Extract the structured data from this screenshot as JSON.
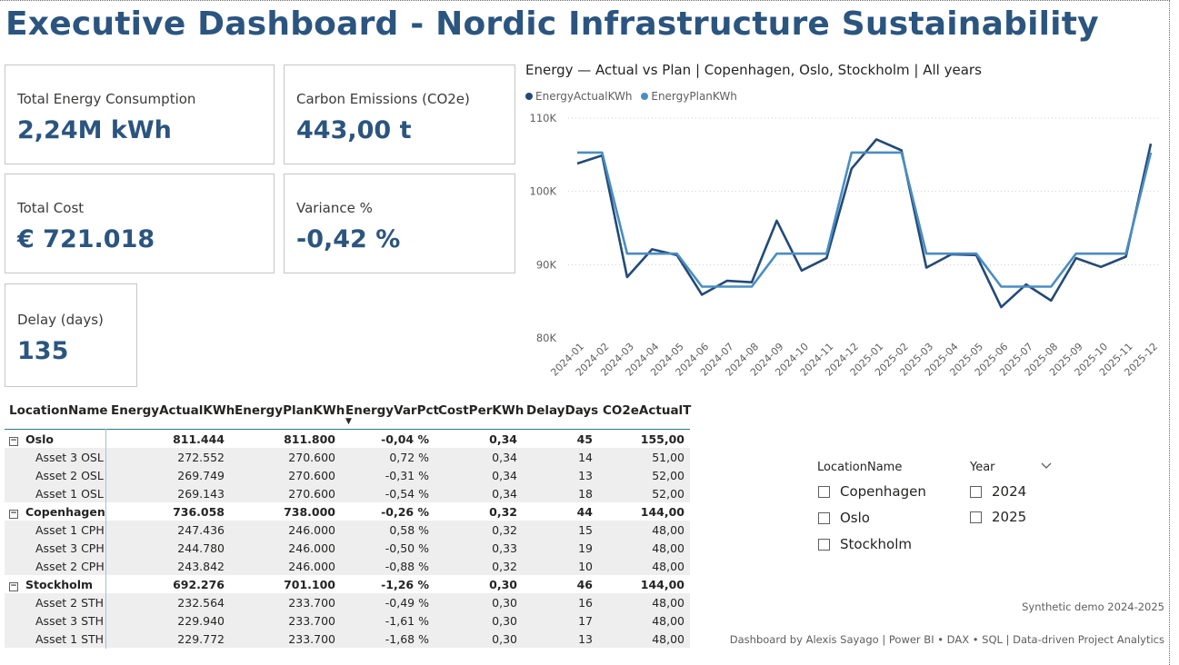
{
  "title": "Executive Dashboard - Nordic Infrastructure Sustainability",
  "kpis": {
    "energy": {
      "label": "Total Energy Consumption",
      "value": "2,24M kWh"
    },
    "co2": {
      "label": "Carbon Emissions (CO2e)",
      "value": "443,00 t"
    },
    "cost": {
      "label": "Total Cost",
      "value": "€ 721.018"
    },
    "variance": {
      "label": "Variance %",
      "value": "-0,42 %"
    },
    "delay": {
      "label": "Delay (days)",
      "value": "135"
    }
  },
  "chart": {
    "title": "Energy — Actual vs Plan | Copenhagen, Oslo, Stockholm | All years"
  },
  "chart_data": {
    "type": "line",
    "title": "Energy — Actual vs Plan | Copenhagen, Oslo, Stockholm | All years",
    "x": [
      "2024-01",
      "2024-02",
      "2024-03",
      "2024-04",
      "2024-05",
      "2024-06",
      "2024-07",
      "2024-08",
      "2024-09",
      "2024-10",
      "2024-11",
      "2024-12",
      "2025-01",
      "2025-02",
      "2025-03",
      "2025-04",
      "2025-05",
      "2025-06",
      "2025-07",
      "2025-08",
      "2025-09",
      "2025-10",
      "2025-11",
      "2025-12"
    ],
    "y_ticks": [
      "80K",
      "90K",
      "100K",
      "110K"
    ],
    "ylim": [
      80000,
      110000
    ],
    "grid": true,
    "legend_position": "top-left",
    "series": [
      {
        "name": "EnergyActualKWh",
        "color": "#234a77",
        "values": [
          103800,
          104900,
          88300,
          92100,
          91300,
          85900,
          87800,
          87600,
          96000,
          89200,
          90900,
          103100,
          107100,
          105600,
          89600,
          91400,
          91300,
          84200,
          87300,
          85100,
          90900,
          89700,
          91100,
          106500
        ]
      },
      {
        "name": "EnergyPlanKWh",
        "color": "#4a8dc2",
        "values": [
          105300,
          105300,
          91500,
          91500,
          91500,
          87000,
          87000,
          87000,
          91500,
          91500,
          91500,
          105300,
          105300,
          105300,
          91500,
          91500,
          91500,
          87000,
          87000,
          87000,
          91500,
          91500,
          91500,
          105300
        ]
      }
    ]
  },
  "table": {
    "columns": [
      "LocationName",
      "EnergyActualKWh",
      "EnergyPlanKWh",
      "EnergyVarPct",
      "CostPerKWh",
      "DelayDays",
      "CO2eActualT"
    ],
    "sort_indicator": "▼",
    "rows": [
      {
        "level": 0,
        "cells": [
          "Oslo",
          "811.444",
          "811.800",
          "-0,04 %",
          "0,34",
          "45",
          "155,00"
        ]
      },
      {
        "level": 1,
        "cells": [
          "Asset 3 OSL",
          "272.552",
          "270.600",
          "0,72 %",
          "0,34",
          "14",
          "51,00"
        ]
      },
      {
        "level": 1,
        "cells": [
          "Asset 2 OSL",
          "269.749",
          "270.600",
          "-0,31 %",
          "0,34",
          "13",
          "52,00"
        ]
      },
      {
        "level": 1,
        "cells": [
          "Asset 1 OSL",
          "269.143",
          "270.600",
          "-0,54 %",
          "0,34",
          "18",
          "52,00"
        ]
      },
      {
        "level": 0,
        "cells": [
          "Copenhagen",
          "736.058",
          "738.000",
          "-0,26 %",
          "0,32",
          "44",
          "144,00"
        ]
      },
      {
        "level": 1,
        "cells": [
          "Asset 1 CPH",
          "247.436",
          "246.000",
          "0,58 %",
          "0,32",
          "15",
          "48,00"
        ]
      },
      {
        "level": 1,
        "cells": [
          "Asset 3 CPH",
          "244.780",
          "246.000",
          "-0,50 %",
          "0,33",
          "19",
          "48,00"
        ]
      },
      {
        "level": 1,
        "cells": [
          "Asset 2 CPH",
          "243.842",
          "246.000",
          "-0,88 %",
          "0,32",
          "10",
          "48,00"
        ]
      },
      {
        "level": 0,
        "cells": [
          "Stockholm",
          "692.276",
          "701.100",
          "-1,26 %",
          "0,30",
          "46",
          "144,00"
        ]
      },
      {
        "level": 1,
        "cells": [
          "Asset 2 STH",
          "232.564",
          "233.700",
          "-0,49 %",
          "0,30",
          "16",
          "48,00"
        ]
      },
      {
        "level": 1,
        "cells": [
          "Asset 3 STH",
          "229.940",
          "233.700",
          "-1,61 %",
          "0,30",
          "17",
          "48,00"
        ]
      },
      {
        "level": 1,
        "cells": [
          "Asset 1 STH",
          "229.772",
          "233.700",
          "-1,68 %",
          "0,30",
          "13",
          "48,00"
        ]
      }
    ]
  },
  "slicers": {
    "location": {
      "header": "LocationName",
      "options": [
        "Copenhagen",
        "Oslo",
        "Stockholm"
      ]
    },
    "year": {
      "header": "Year",
      "options": [
        "2024",
        "2025"
      ]
    }
  },
  "footer": {
    "demo": "Synthetic demo 2024-2025",
    "credit": "Dashboard by Alexis Sayago | Power BI • DAX • SQL | Data-driven Project Analytics"
  }
}
